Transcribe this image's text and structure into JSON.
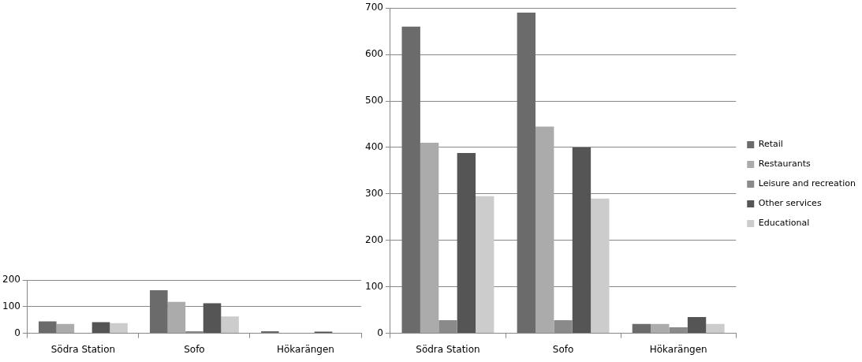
{
  "chart_data": [
    {
      "type": "bar",
      "categories": [
        "Södra Station",
        "Sofo",
        "Hökarängen"
      ],
      "series": [
        {
          "color": "#6b6b6b",
          "values": [
            45,
            162,
            8
          ]
        },
        {
          "color": "#ababab",
          "values": [
            35,
            118,
            null
          ]
        },
        {
          "color": "#8a8a8a",
          "values": [
            2,
            8,
            null
          ]
        },
        {
          "color": "#555555",
          "values": [
            42,
            113,
            6
          ]
        },
        {
          "color": "#cccccc",
          "values": [
            38,
            63,
            null
          ]
        }
      ],
      "ylim": [
        0,
        200
      ],
      "yticks": [
        0,
        100,
        200
      ],
      "grid": "y",
      "legend": false
    },
    {
      "type": "bar",
      "categories": [
        "Södra Station",
        "Sofo",
        "Hökarängen"
      ],
      "series": [
        {
          "name": "Retail",
          "color": "#6b6b6b",
          "values": [
            660,
            690,
            20
          ]
        },
        {
          "name": "Restaurants",
          "color": "#ababab",
          "values": [
            410,
            445,
            20
          ]
        },
        {
          "name": "Leisure and recreation",
          "color": "#8a8a8a",
          "values": [
            28,
            28,
            13
          ]
        },
        {
          "name": "Other services",
          "color": "#555555",
          "values": [
            388,
            400,
            35
          ]
        },
        {
          "name": "Educational",
          "color": "#cccccc",
          "values": [
            295,
            290,
            20
          ]
        }
      ],
      "ylim": [
        0,
        700
      ],
      "yticks": [
        0,
        100,
        200,
        300,
        400,
        500,
        600,
        700
      ],
      "grid": "y",
      "legend": "right"
    }
  ]
}
